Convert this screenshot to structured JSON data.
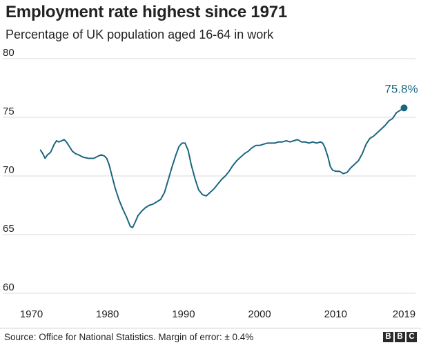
{
  "title": "Employment rate highest since 1971",
  "subtitle": "Percentage of UK population aged 16-64 in work",
  "source": "Source: Office for National Statistics. Margin of error: ± 0.4%",
  "logo_letters": [
    "B",
    "B",
    "C"
  ],
  "colors": {
    "line": "#1a6580",
    "grid": "#d9d9d9",
    "text": "#222222"
  },
  "chart_data": {
    "type": "line",
    "title": "Employment rate highest since 1971",
    "ylabel": "",
    "xlabel": "",
    "ylim": [
      60,
      80
    ],
    "xlim": [
      1969.5,
      2020.5
    ],
    "yticks": [
      60,
      65,
      70,
      75,
      80
    ],
    "xticks": [
      1970,
      1980,
      1990,
      2000,
      2010,
      2019
    ],
    "grid": "horizontal",
    "annotation": {
      "label": "75.8%",
      "x": 2019.0,
      "y": 75.8
    },
    "series": [
      {
        "x": [
          1971.2,
          1971.5,
          1971.8,
          1972.1,
          1972.5,
          1973.0,
          1973.3,
          1973.6,
          1974.0,
          1974.3,
          1974.6,
          1975.0,
          1975.4,
          1975.8,
          1976.2,
          1976.8,
          1977.5,
          1978.2,
          1978.8,
          1979.2,
          1979.6,
          1979.9,
          1980.2,
          1980.6,
          1981.0,
          1981.5,
          1982.0,
          1982.5,
          1983.0,
          1983.3,
          1983.6,
          1984.0,
          1984.5,
          1985.0,
          1985.5,
          1986.0,
          1986.5,
          1987.0,
          1987.5,
          1988.0,
          1988.5,
          1989.0,
          1989.4,
          1989.8,
          1990.2,
          1990.6,
          1991.0,
          1991.5,
          1992.0,
          1992.5,
          1993.0,
          1993.5,
          1994.0,
          1994.5,
          1995.0,
          1995.5,
          1996.0,
          1996.5,
          1997.0,
          1997.5,
          1998.0,
          1998.5,
          1999.0,
          1999.5,
          2000.0,
          2000.5,
          2001.0,
          2001.5,
          2002.0,
          2002.5,
          2003.0,
          2003.5,
          2004.0,
          2004.5,
          2005.0,
          2005.5,
          2006.0,
          2006.5,
          2007.0,
          2007.5,
          2008.0,
          2008.3,
          2008.6,
          2009.0,
          2009.3,
          2009.6,
          2010.0,
          2010.5,
          2011.0,
          2011.5,
          2012.0,
          2012.5,
          2013.0,
          2013.5,
          2014.0,
          2014.5,
          2015.0,
          2015.5,
          2016.0,
          2016.5,
          2017.0,
          2017.5,
          2018.0,
          2018.5,
          2019.0
        ],
        "values": [
          72.2,
          71.9,
          71.5,
          71.8,
          72.0,
          72.7,
          73.0,
          72.9,
          73.0,
          73.1,
          72.9,
          72.5,
          72.1,
          71.9,
          71.8,
          71.6,
          71.5,
          71.5,
          71.7,
          71.8,
          71.7,
          71.5,
          71.0,
          70.0,
          69.0,
          68.0,
          67.2,
          66.5,
          65.7,
          65.6,
          66.0,
          66.6,
          67.0,
          67.3,
          67.5,
          67.6,
          67.8,
          68.0,
          68.6,
          69.7,
          70.8,
          71.8,
          72.5,
          72.8,
          72.8,
          72.2,
          71.0,
          69.8,
          68.8,
          68.4,
          68.3,
          68.6,
          68.9,
          69.3,
          69.7,
          70.0,
          70.4,
          70.9,
          71.3,
          71.6,
          71.9,
          72.1,
          72.4,
          72.6,
          72.6,
          72.7,
          72.8,
          72.8,
          72.8,
          72.9,
          72.9,
          73.0,
          72.9,
          73.0,
          73.1,
          72.9,
          72.9,
          72.8,
          72.9,
          72.8,
          72.9,
          72.8,
          72.4,
          71.6,
          70.8,
          70.5,
          70.4,
          70.4,
          70.2,
          70.3,
          70.7,
          71.0,
          71.3,
          71.9,
          72.7,
          73.2,
          73.4,
          73.7,
          74.0,
          74.3,
          74.7,
          74.9,
          75.4,
          75.6,
          75.8
        ]
      }
    ]
  }
}
